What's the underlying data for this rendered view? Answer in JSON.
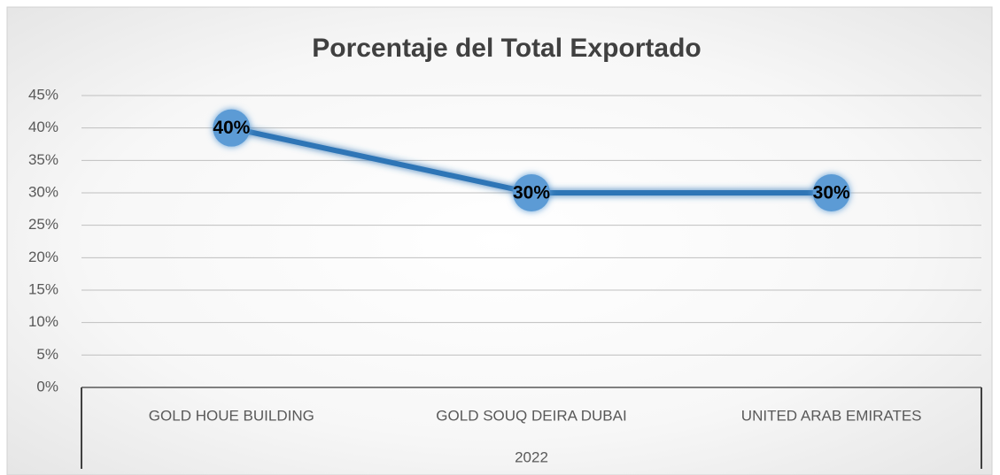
{
  "chart_data": {
    "type": "line",
    "title": "Porcentaje del Total Exportado",
    "categories": [
      "GOLD HOUE BUILDING",
      "GOLD SOUQ DEIRA DUBAI",
      "UNITED ARAB EMIRATES"
    ],
    "category_group": "2022",
    "values": [
      40,
      30,
      30
    ],
    "value_labels": [
      "40%",
      "30%",
      "30%"
    ],
    "color": "#2e75b6",
    "marker_color": "#5b9bd5",
    "ylim": [
      0,
      45
    ],
    "yticks": [
      {
        "value": 0,
        "label": "0%"
      },
      {
        "value": 5,
        "label": "5%"
      },
      {
        "value": 10,
        "label": "10%"
      },
      {
        "value": 15,
        "label": "15%"
      },
      {
        "value": 20,
        "label": "20%"
      },
      {
        "value": 25,
        "label": "25%"
      },
      {
        "value": 30,
        "label": "30%"
      },
      {
        "value": 35,
        "label": "35%"
      },
      {
        "value": 40,
        "label": "40%"
      },
      {
        "value": 45,
        "label": "45%"
      }
    ],
    "grid": true
  }
}
